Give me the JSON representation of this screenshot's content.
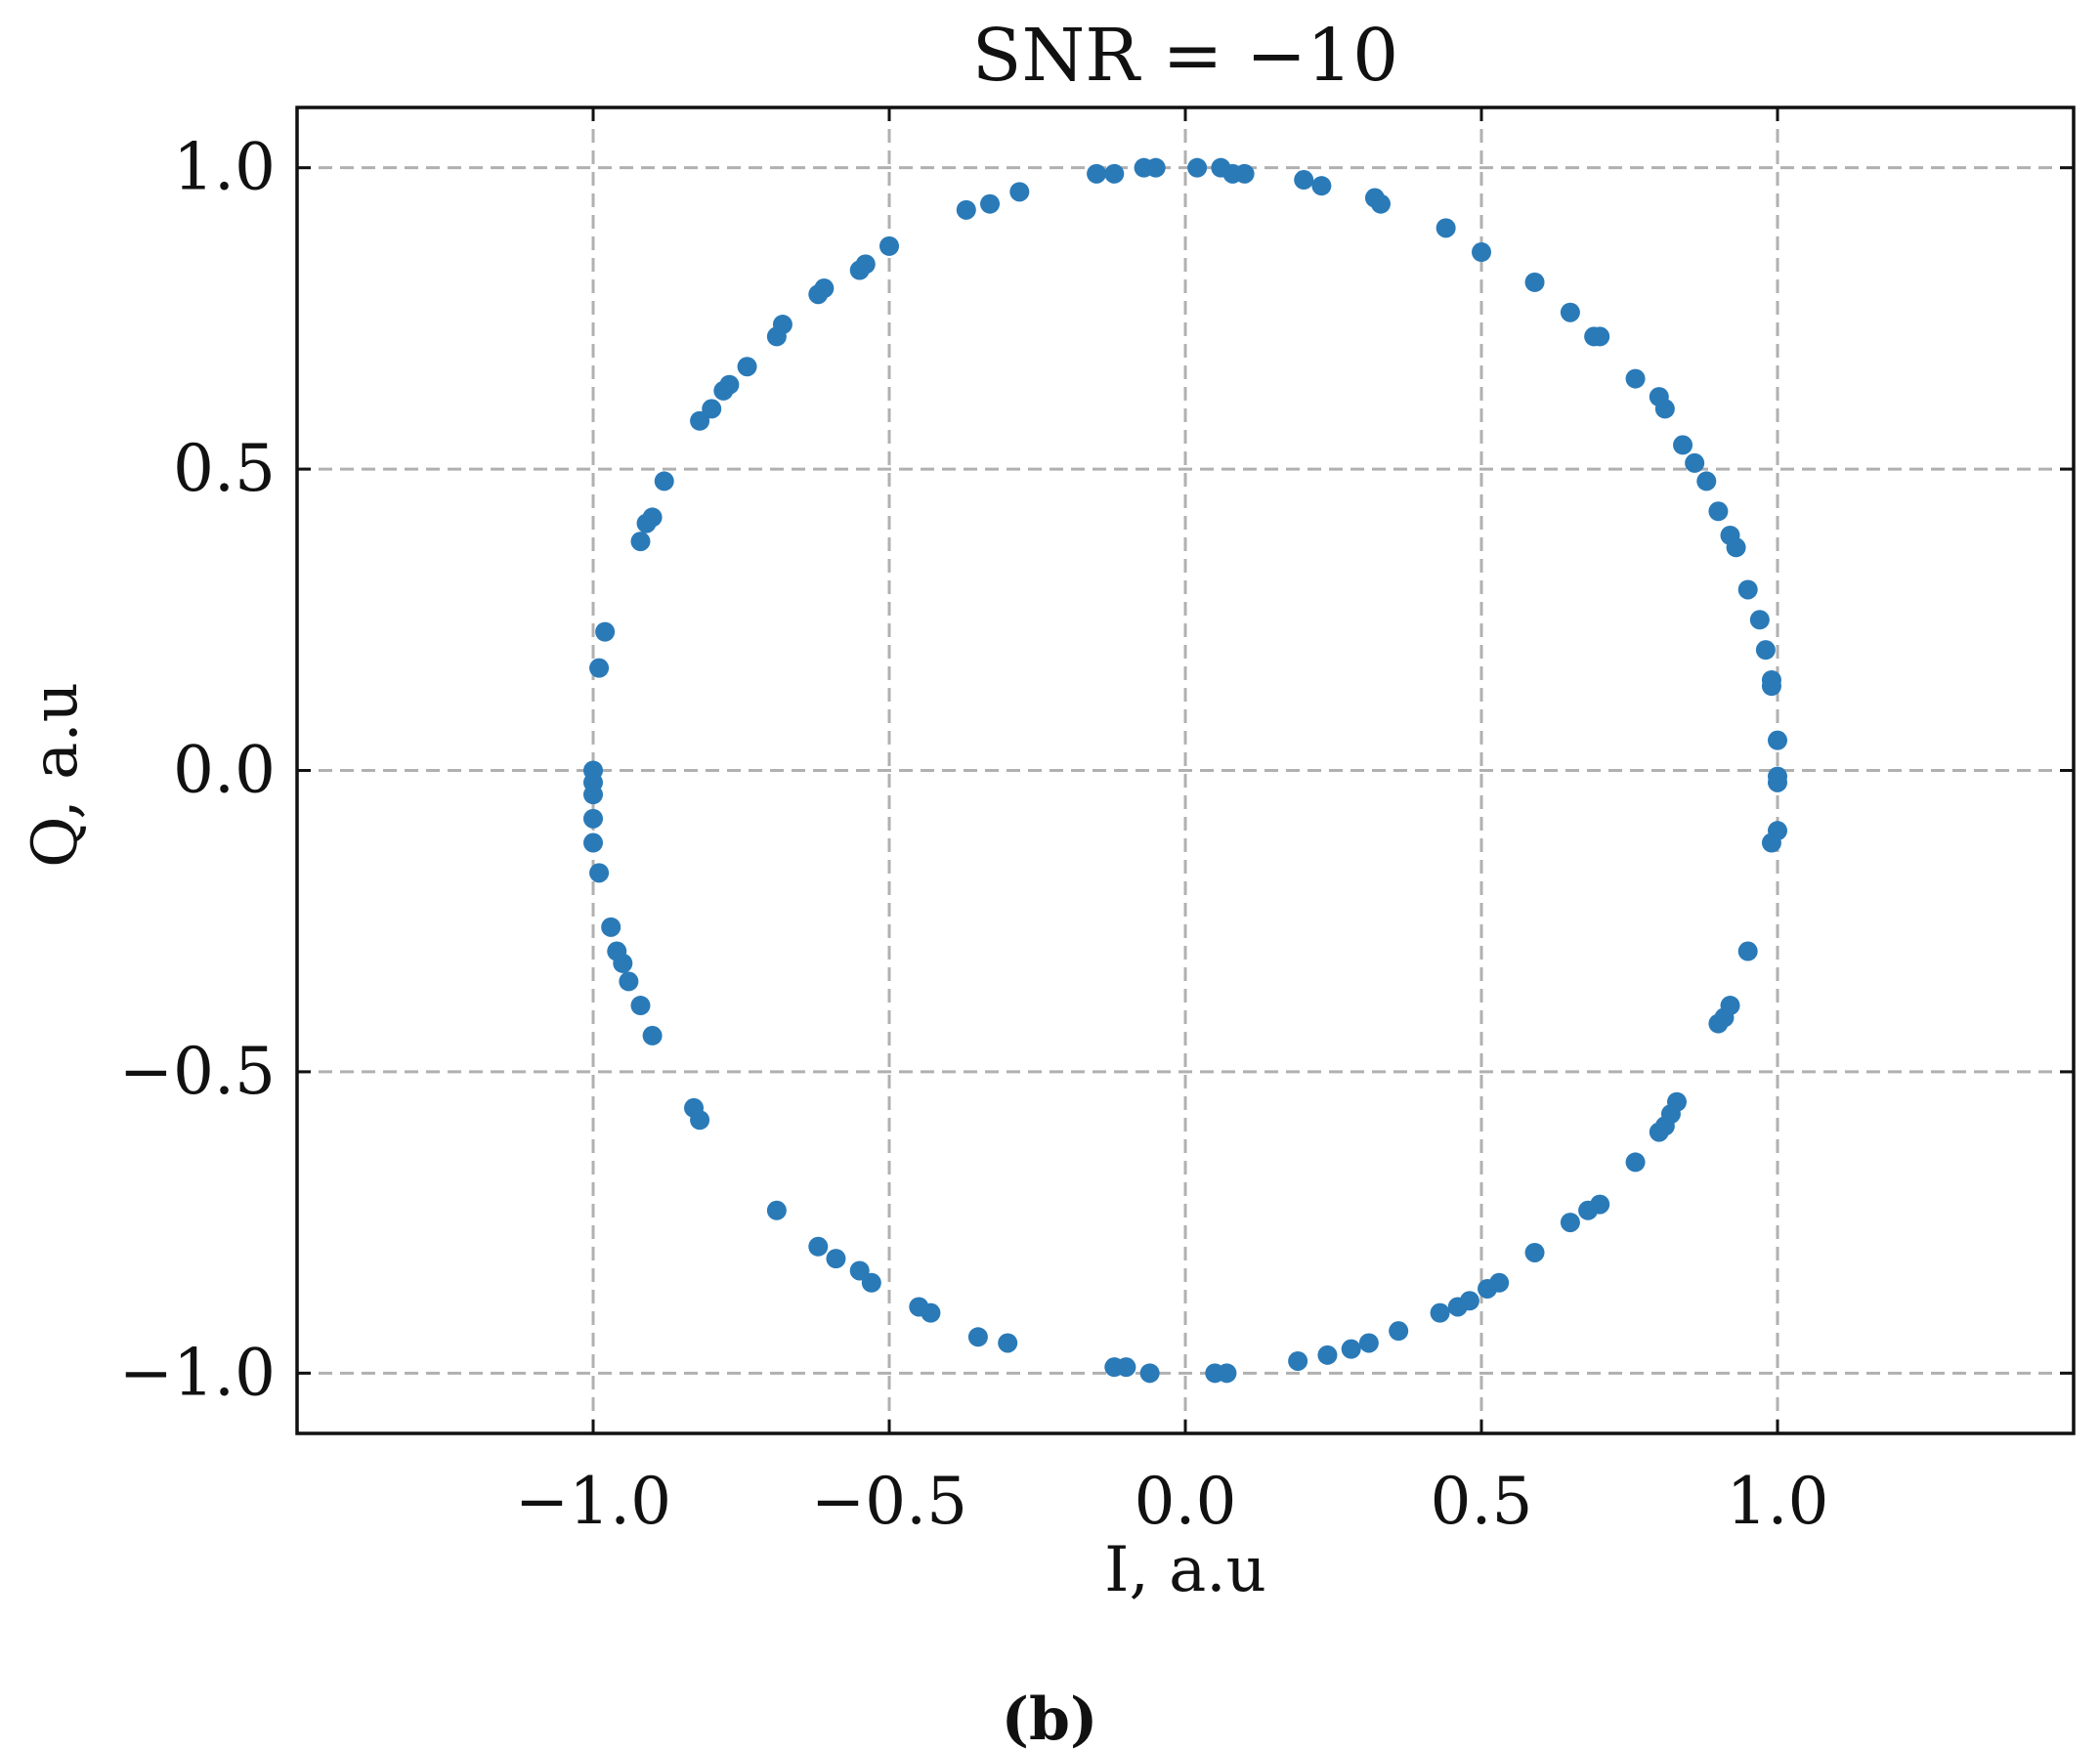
{
  "chart_data": {
    "type": "scatter",
    "title": "SNR = −10",
    "xlabel": "I, a.u",
    "ylabel": "Q, a.u",
    "caption": "(b)",
    "xlim": [
      -1.5,
      1.5
    ],
    "ylim": [
      -1.1,
      1.1
    ],
    "grid": true,
    "x_ticks": [
      {
        "value": -1.0,
        "label": "−1.0"
      },
      {
        "value": -0.5,
        "label": "−0.5"
      },
      {
        "value": 0.0,
        "label": "0.0"
      },
      {
        "value": 0.5,
        "label": "0.5"
      },
      {
        "value": 1.0,
        "label": "1.0"
      }
    ],
    "y_ticks": [
      {
        "value": 1.0,
        "label": "1.0"
      },
      {
        "value": 0.5,
        "label": "0.5"
      },
      {
        "value": 0.0,
        "label": "0.0"
      },
      {
        "value": -0.5,
        "label": "−0.5"
      },
      {
        "value": -1.0,
        "label": "−1.0"
      }
    ],
    "marker_color": "#2a7ab8",
    "points": [
      [
        -0.15,
        0.99
      ],
      [
        -0.12,
        0.99
      ],
      [
        -0.07,
        1.0
      ],
      [
        -0.05,
        1.0
      ],
      [
        0.02,
        1.0
      ],
      [
        0.06,
        1.0
      ],
      [
        0.08,
        0.99
      ],
      [
        0.1,
        0.99
      ],
      [
        0.2,
        0.98
      ],
      [
        0.23,
        0.97
      ],
      [
        0.32,
        0.95
      ],
      [
        0.33,
        0.94
      ],
      [
        0.44,
        0.9
      ],
      [
        0.5,
        0.86
      ],
      [
        0.59,
        0.81
      ],
      [
        0.65,
        0.76
      ],
      [
        0.69,
        0.72
      ],
      [
        0.7,
        0.72
      ],
      [
        0.76,
        0.65
      ],
      [
        0.8,
        0.62
      ],
      [
        0.81,
        0.6
      ],
      [
        0.84,
        0.54
      ],
      [
        0.86,
        0.51
      ],
      [
        0.88,
        0.48
      ],
      [
        0.9,
        0.43
      ],
      [
        0.92,
        0.39
      ],
      [
        0.93,
        0.37
      ],
      [
        0.95,
        0.3
      ],
      [
        0.97,
        0.25
      ],
      [
        0.98,
        0.2
      ],
      [
        0.99,
        0.15
      ],
      [
        0.99,
        0.14
      ],
      [
        1.0,
        0.05
      ],
      [
        1.0,
        -0.01
      ],
      [
        1.0,
        -0.02
      ],
      [
        1.0,
        -0.1
      ],
      [
        0.99,
        -0.12
      ],
      [
        0.95,
        -0.3
      ],
      [
        0.92,
        -0.39
      ],
      [
        0.91,
        -0.41
      ],
      [
        0.9,
        -0.42
      ],
      [
        0.83,
        -0.55
      ],
      [
        0.82,
        -0.57
      ],
      [
        0.81,
        -0.59
      ],
      [
        0.8,
        -0.6
      ],
      [
        0.76,
        -0.65
      ],
      [
        0.7,
        -0.72
      ],
      [
        0.68,
        -0.73
      ],
      [
        0.65,
        -0.75
      ],
      [
        0.59,
        -0.8
      ],
      [
        0.53,
        -0.85
      ],
      [
        0.51,
        -0.86
      ],
      [
        0.48,
        -0.88
      ],
      [
        0.46,
        -0.89
      ],
      [
        0.43,
        -0.9
      ],
      [
        0.36,
        -0.93
      ],
      [
        0.31,
        -0.95
      ],
      [
        0.28,
        -0.96
      ],
      [
        0.24,
        -0.97
      ],
      [
        0.19,
        -0.98
      ],
      [
        0.07,
        -1.0
      ],
      [
        0.05,
        -1.0
      ],
      [
        -0.06,
        -1.0
      ],
      [
        -0.1,
        -0.99
      ],
      [
        -0.12,
        -0.99
      ],
      [
        -0.3,
        -0.95
      ],
      [
        -0.35,
        -0.94
      ],
      [
        -0.43,
        -0.9
      ],
      [
        -0.45,
        -0.89
      ],
      [
        -0.53,
        -0.85
      ],
      [
        -0.55,
        -0.83
      ],
      [
        -0.59,
        -0.81
      ],
      [
        -0.62,
        -0.79
      ],
      [
        -0.69,
        -0.73
      ],
      [
        -0.82,
        -0.58
      ],
      [
        -0.83,
        -0.56
      ],
      [
        -0.9,
        -0.44
      ],
      [
        -0.92,
        -0.39
      ],
      [
        -0.94,
        -0.35
      ],
      [
        -0.95,
        -0.32
      ],
      [
        -0.96,
        -0.3
      ],
      [
        -0.97,
        -0.26
      ],
      [
        -0.99,
        -0.17
      ],
      [
        -1.0,
        -0.12
      ],
      [
        -1.0,
        -0.08
      ],
      [
        -1.0,
        -0.04
      ],
      [
        -1.0,
        -0.02
      ],
      [
        -1.0,
        0.0
      ],
      [
        -0.99,
        0.17
      ],
      [
        -0.98,
        0.23
      ],
      [
        -0.92,
        0.38
      ],
      [
        -0.91,
        0.41
      ],
      [
        -0.9,
        0.42
      ],
      [
        -0.88,
        0.48
      ],
      [
        -0.82,
        0.58
      ],
      [
        -0.8,
        0.6
      ],
      [
        -0.78,
        0.63
      ],
      [
        -0.77,
        0.64
      ],
      [
        -0.74,
        0.67
      ],
      [
        -0.69,
        0.72
      ],
      [
        -0.68,
        0.74
      ],
      [
        -0.62,
        0.79
      ],
      [
        -0.61,
        0.8
      ],
      [
        -0.55,
        0.83
      ],
      [
        -0.54,
        0.84
      ],
      [
        -0.5,
        0.87
      ],
      [
        -0.37,
        0.93
      ],
      [
        -0.33,
        0.94
      ],
      [
        -0.28,
        0.96
      ]
    ]
  }
}
